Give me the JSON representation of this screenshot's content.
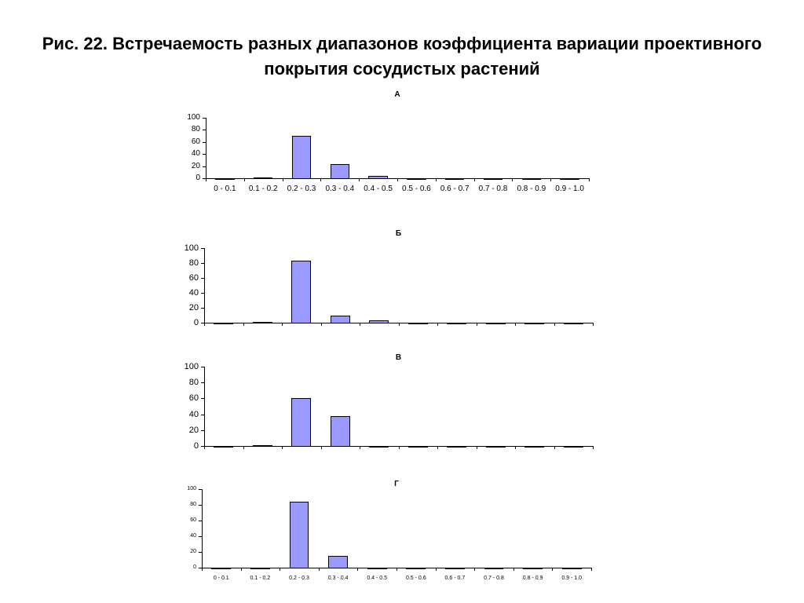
{
  "title": "Рис. 22. Встречаемость разных диапазонов коэффициента вариации проективного покрытия сосудистых растений",
  "chart_data": [
    {
      "type": "bar",
      "title": "А",
      "categories": [
        "0 - 0.1",
        "0.1 - 0.2",
        "0.2 - 0.3",
        "0.3 - 0.4",
        "0.4 - 0.5",
        "0.5 - 0.6",
        "0.6 - 0.7",
        "0.7 - 0.8",
        "0.8 - 0.9",
        "0.9 - 1.0"
      ],
      "values": [
        0,
        1,
        70,
        23,
        4,
        0,
        0,
        0,
        0,
        0
      ],
      "color": "#9999ff",
      "ylim": [
        0,
        100
      ],
      "yticks": [
        0,
        20,
        40,
        60,
        80,
        100
      ]
    },
    {
      "type": "bar",
      "title": "Б",
      "categories": [
        null,
        null,
        null,
        null,
        null,
        null,
        null,
        null,
        null,
        null
      ],
      "values": [
        0,
        1,
        83,
        10,
        3,
        0,
        0,
        0,
        0,
        0
      ],
      "color": "#9999ff",
      "ylim": [
        0,
        100
      ],
      "yticks": [
        0,
        20,
        40,
        60,
        80,
        100
      ]
    },
    {
      "type": "bar",
      "title": "В",
      "categories": [
        null,
        null,
        null,
        null,
        null,
        null,
        null,
        null,
        null,
        null
      ],
      "values": [
        0,
        1,
        60,
        38,
        0,
        0,
        0,
        0,
        0,
        0
      ],
      "color": "#9999ff",
      "ylim": [
        0,
        100
      ],
      "yticks": [
        0,
        20,
        40,
        60,
        80,
        100
      ]
    },
    {
      "type": "bar",
      "title": "Г",
      "categories": [
        "0 - 0.1",
        "0.1 - 0.2",
        "0.2 - 0.3",
        "0.3 - 0.4",
        "0.4 - 0.5",
        "0.5 - 0.6",
        "0.6 - 0.7",
        "0.7 - 0.8",
        "0.8 - 0.9",
        "0.9 - 1.0"
      ],
      "values": [
        0,
        0,
        84,
        15,
        0,
        0,
        0,
        0,
        0,
        0
      ],
      "color": "#9999ff",
      "ylim": [
        0,
        100
      ],
      "yticks": [
        0,
        20,
        40,
        60,
        80,
        100
      ]
    }
  ]
}
